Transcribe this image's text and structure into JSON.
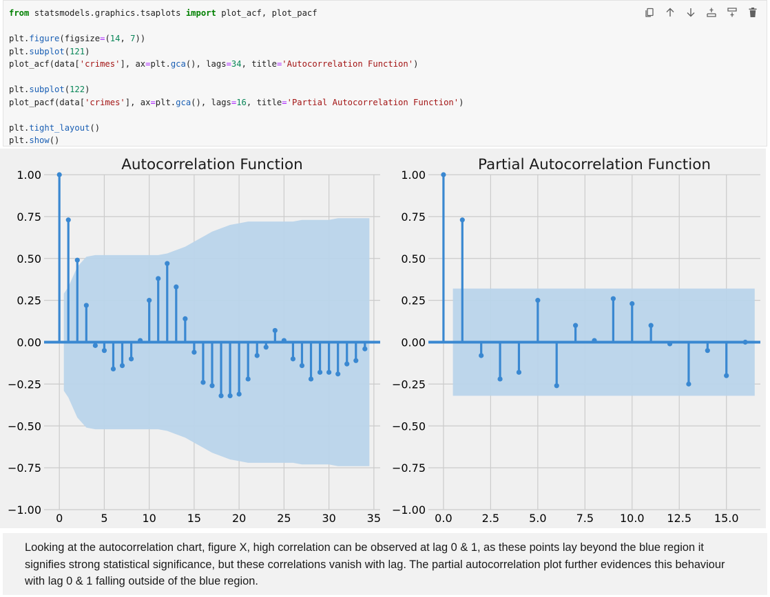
{
  "code_cell": {
    "lines": [
      [
        {
          "t": "from",
          "c": "kw"
        },
        {
          "t": " statsmodels.graphics.tsaplots "
        },
        {
          "t": "import",
          "c": "kw"
        },
        {
          "t": " plot_acf, plot_pacf"
        }
      ],
      [],
      [
        {
          "t": "plt."
        },
        {
          "t": "figure",
          "c": "fn"
        },
        {
          "t": "(figsize"
        },
        {
          "t": "=",
          "c": "op"
        },
        {
          "t": "("
        },
        {
          "t": "14",
          "c": "num"
        },
        {
          "t": ", "
        },
        {
          "t": "7",
          "c": "num"
        },
        {
          "t": "))"
        }
      ],
      [
        {
          "t": "plt."
        },
        {
          "t": "subplot",
          "c": "fn"
        },
        {
          "t": "("
        },
        {
          "t": "121",
          "c": "num"
        },
        {
          "t": ")"
        }
      ],
      [
        {
          "t": "plot_acf(data["
        },
        {
          "t": "'crimes'",
          "c": "str"
        },
        {
          "t": "], ax"
        },
        {
          "t": "=",
          "c": "op"
        },
        {
          "t": "plt."
        },
        {
          "t": "gca",
          "c": "fn"
        },
        {
          "t": "(), lags"
        },
        {
          "t": "=",
          "c": "op"
        },
        {
          "t": "34",
          "c": "num"
        },
        {
          "t": ", title"
        },
        {
          "t": "=",
          "c": "op"
        },
        {
          "t": "'Autocorrelation Function'",
          "c": "str"
        },
        {
          "t": ")"
        }
      ],
      [],
      [
        {
          "t": "plt."
        },
        {
          "t": "subplot",
          "c": "fn"
        },
        {
          "t": "("
        },
        {
          "t": "122",
          "c": "num"
        },
        {
          "t": ")"
        }
      ],
      [
        {
          "t": "plot_pacf(data["
        },
        {
          "t": "'crimes'",
          "c": "str"
        },
        {
          "t": "], ax"
        },
        {
          "t": "=",
          "c": "op"
        },
        {
          "t": "plt."
        },
        {
          "t": "gca",
          "c": "fn"
        },
        {
          "t": "(), lags"
        },
        {
          "t": "=",
          "c": "op"
        },
        {
          "t": "16",
          "c": "num"
        },
        {
          "t": ", title"
        },
        {
          "t": "=",
          "c": "op"
        },
        {
          "t": "'Partial Autocorrelation Function'",
          "c": "str"
        },
        {
          "t": ")"
        }
      ],
      [],
      [
        {
          "t": "plt."
        },
        {
          "t": "tight_layout",
          "c": "fn"
        },
        {
          "t": "()"
        }
      ],
      [
        {
          "t": "plt."
        },
        {
          "t": "show",
          "c": "fn"
        },
        {
          "t": "()"
        }
      ]
    ],
    "toolbar": [
      {
        "name": "copy-icon"
      },
      {
        "name": "move-up-icon"
      },
      {
        "name": "move-down-icon"
      },
      {
        "name": "insert-above-icon"
      },
      {
        "name": "insert-below-icon"
      },
      {
        "name": "delete-icon"
      }
    ]
  },
  "colors": {
    "stem": "#3a88d1",
    "band": "#b9d4ea",
    "plot_bg": "#f0f0f0",
    "grid": "#cbcbcb",
    "zero_line": "#3a88d1"
  },
  "chart_data": [
    {
      "type": "bar",
      "title": "Autocorrelation Function",
      "x": [
        0,
        1,
        2,
        3,
        4,
        5,
        6,
        7,
        8,
        9,
        10,
        11,
        12,
        13,
        14,
        15,
        16,
        17,
        18,
        19,
        20,
        21,
        22,
        23,
        24,
        25,
        26,
        27,
        28,
        29,
        30,
        31,
        32,
        33,
        34
      ],
      "values": [
        1.0,
        0.73,
        0.49,
        0.22,
        -0.02,
        -0.05,
        -0.16,
        -0.14,
        -0.1,
        0.01,
        0.25,
        0.38,
        0.47,
        0.33,
        0.14,
        -0.06,
        -0.24,
        -0.26,
        -0.32,
        -0.32,
        -0.31,
        -0.22,
        -0.08,
        -0.03,
        0.07,
        0.01,
        -0.1,
        -0.14,
        -0.22,
        -0.18,
        -0.18,
        -0.19,
        -0.13,
        -0.11,
        -0.04
      ],
      "confidence_upper": [
        null,
        0.33,
        0.45,
        0.51,
        0.52,
        0.52,
        0.52,
        0.52,
        0.52,
        0.52,
        0.52,
        0.52,
        0.53,
        0.55,
        0.57,
        0.6,
        0.63,
        0.66,
        0.68,
        0.7,
        0.71,
        0.72,
        0.72,
        0.72,
        0.72,
        0.72,
        0.72,
        0.73,
        0.73,
        0.73,
        0.73,
        0.74,
        0.74,
        0.74,
        0.74
      ],
      "xlim": [
        -1.7,
        35.7
      ],
      "ylim": [
        -1.0,
        1.0
      ],
      "xticks": [
        0,
        5,
        10,
        15,
        20,
        25,
        30,
        35
      ],
      "yticks": [
        -1.0,
        -0.75,
        -0.5,
        -0.25,
        0.0,
        0.25,
        0.5,
        0.75,
        1.0
      ],
      "ytick_labels": [
        "−1.00",
        "−0.75",
        "−0.50",
        "−0.25",
        "0.00",
        "0.25",
        "0.50",
        "0.75",
        "1.00"
      ],
      "xtick_labels": [
        "0",
        "5",
        "10",
        "15",
        "20",
        "25",
        "30",
        "35"
      ],
      "grid": true
    },
    {
      "type": "bar",
      "title": "Partial Autocorrelation Function",
      "x": [
        0,
        1,
        2,
        3,
        4,
        5,
        6,
        7,
        8,
        9,
        10,
        11,
        12,
        13,
        14,
        15,
        16
      ],
      "values": [
        1.0,
        0.73,
        -0.08,
        -0.22,
        -0.18,
        0.25,
        -0.26,
        0.1,
        0.01,
        0.26,
        0.23,
        0.1,
        -0.01,
        -0.25,
        -0.05,
        -0.2,
        0.0
      ],
      "confidence_band": [
        -0.32,
        0.32
      ],
      "confidence_x": [
        0.5,
        16.5
      ],
      "xlim": [
        -0.8,
        16.8
      ],
      "ylim": [
        -1.0,
        1.0
      ],
      "xticks": [
        0,
        2.5,
        5,
        7.5,
        10,
        12.5,
        15
      ],
      "xtick_labels": [
        "0.0",
        "2.5",
        "5.0",
        "7.5",
        "10.0",
        "12.5",
        "15.0"
      ],
      "yticks": [
        -1.0,
        -0.75,
        -0.5,
        -0.25,
        0.0,
        0.25,
        0.5,
        0.75,
        1.0
      ],
      "ytick_labels": [
        "−1.00",
        "−0.75",
        "−0.50",
        "−0.25",
        "0.00",
        "0.25",
        "0.50",
        "0.75",
        "1.00"
      ],
      "grid": true
    }
  ],
  "markdown_cell": {
    "text": "Looking at the autocorrelation chart, figure X, high correlation can be observed at lag 0 & 1, as these points lay beyond the blue region it signifies strong statistical significance, but these correlations vanish with lag. The partial autocorrelation plot further evidences this behaviour with lag 0 & 1 falling outside of the blue region."
  }
}
